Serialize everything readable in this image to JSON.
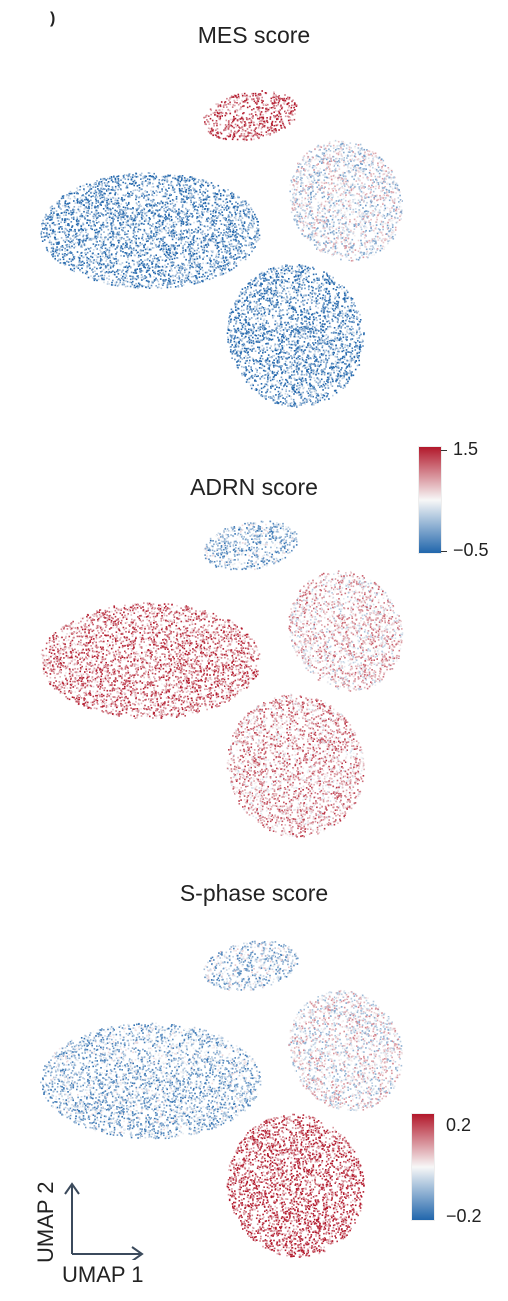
{
  "panel_letter": ")",
  "chart_data": [
    {
      "type": "scatter",
      "title": "MES score",
      "xlabel": "UMAP 1",
      "ylabel": "UMAP 2",
      "colorbar": {
        "min": -0.5,
        "max": 1.5,
        "min_label": "−0.5",
        "max_label": "1.5",
        "colors": [
          "#2166ac",
          "#f7f7f7",
          "#b2182b"
        ]
      },
      "regions": [
        {
          "name": "left cluster",
          "level": 0.15
        },
        {
          "name": "top cluster",
          "level": 0.85
        },
        {
          "name": "upper right arm",
          "level": 0.45
        },
        {
          "name": "lower right cluster",
          "level": 0.15
        }
      ]
    },
    {
      "type": "scatter",
      "title": "ADRN score",
      "xlabel": "UMAP 1",
      "ylabel": "UMAP 2",
      "colorbar": {
        "min": -0.5,
        "max": 1.5,
        "min_label": "−0.5",
        "max_label": "1.5",
        "colors": [
          "#2166ac",
          "#f7f7f7",
          "#b2182b"
        ]
      },
      "regions": [
        {
          "name": "left cluster",
          "level": 0.78
        },
        {
          "name": "top cluster",
          "level": 0.3
        },
        {
          "name": "upper right arm",
          "level": 0.6
        },
        {
          "name": "lower right cluster",
          "level": 0.68
        }
      ]
    },
    {
      "type": "scatter",
      "title": "S-phase score",
      "xlabel": "UMAP 1",
      "ylabel": "UMAP 2",
      "colorbar": {
        "min": -0.2,
        "max": 0.2,
        "min_label": "−0.2",
        "max_label": "0.2",
        "colors": [
          "#2166ac",
          "#f7f7f7",
          "#b2182b"
        ]
      },
      "regions": [
        {
          "name": "left cluster",
          "level": 0.3
        },
        {
          "name": "top cluster",
          "level": 0.35
        },
        {
          "name": "upper right arm",
          "level": 0.5
        },
        {
          "name": "lower right cluster",
          "level": 0.88
        }
      ]
    }
  ]
}
